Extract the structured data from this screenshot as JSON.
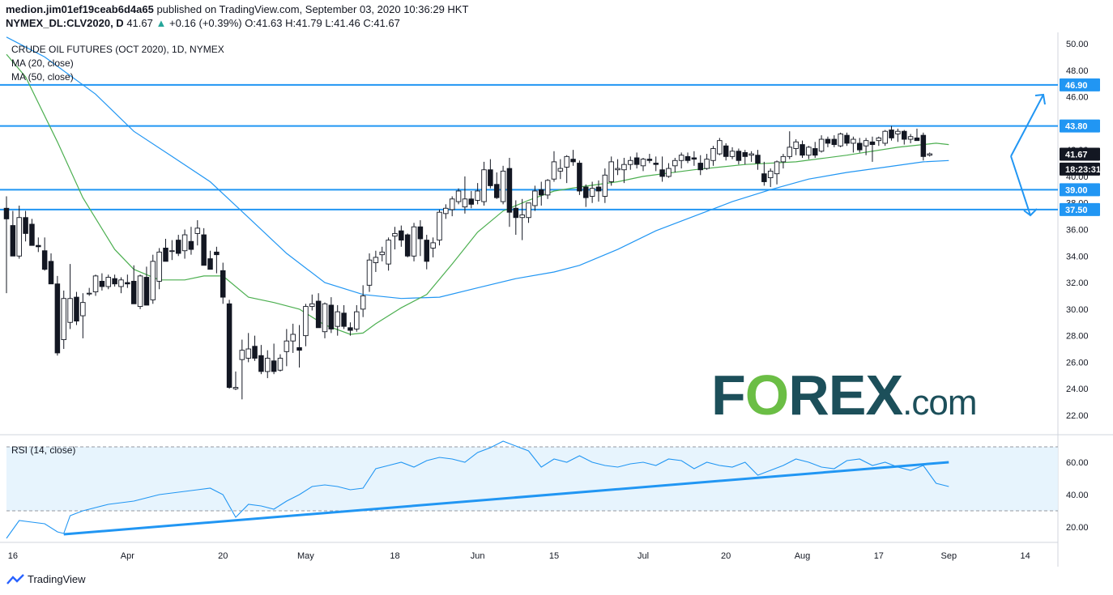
{
  "header": {
    "publisher": "medion.jim01ef19ceab6d4a65",
    "published_text": "published on TradingView.com, September 03, 2020 10:36:29 HKT",
    "symbol": "NYMEX_DL:CLV2020, D",
    "last": "41.67",
    "arrow": "▲",
    "change": "+0.16 (+0.39%)",
    "ohlc": {
      "o": "41.63",
      "h": "41.79",
      "l": "41.46",
      "c": "41.67"
    }
  },
  "legend": {
    "title": "CRUDE OIL FUTURES (OCT 2020), 1D, NYMEX",
    "ma20": "MA (20, close)",
    "ma50": "MA (50, close)"
  },
  "rsi_label": "RSI (14, close)",
  "logo_text": "FOREX.com",
  "footer_brand": "TradingView",
  "colors": {
    "up_text": "#26a69a",
    "candle": "#131722",
    "ma20": "#4caf50",
    "ma50": "#2196f3",
    "level": "#2196f3",
    "rsi_line": "#2196f3",
    "rsi_band": "#e3f2fd",
    "logo": "#1c4f5a",
    "logo_accent": "#6bbe45"
  },
  "chart_data": {
    "type": "candlestick",
    "title": "CRUDE OIL FUTURES (OCT 2020), 1D, NYMEX",
    "x_tick_labels": [
      "16",
      "Apr",
      "20",
      "May",
      "18",
      "Jun",
      "15",
      "Jul",
      "20",
      "Aug",
      "17",
      "Sep",
      "14"
    ],
    "y_tick_labels": [
      "22.00",
      "24.00",
      "26.00",
      "28.00",
      "30.00",
      "32.00",
      "34.00",
      "36.00",
      "38.00",
      "40.00",
      "42.00",
      "44.00",
      "46.00",
      "48.00",
      "50.00"
    ],
    "ylim": [
      21,
      50.5
    ],
    "levels": [
      46.9,
      43.8,
      39.0,
      37.5
    ],
    "price_labels": [
      {
        "text": "46.90",
        "value": 46.9,
        "kind": "level"
      },
      {
        "text": "43.80",
        "value": 43.8,
        "kind": "level"
      },
      {
        "text": "41.67",
        "value": 41.67,
        "kind": "last"
      },
      {
        "text": "18:23:31",
        "value": 40.55,
        "kind": "timer"
      },
      {
        "text": "39.00",
        "value": 39.0,
        "kind": "level"
      },
      {
        "text": "37.50",
        "value": 37.5,
        "kind": "level"
      }
    ],
    "rsi_tick_labels": [
      "20.00",
      "40.00",
      "60.00"
    ],
    "rsi_band": [
      30,
      70
    ],
    "rsi_ylim": [
      8,
      76
    ],
    "candles": [
      [
        37.6,
        38.5,
        31.2,
        36.8
      ],
      [
        36.3,
        37.4,
        34.0,
        34.0
      ],
      [
        34.0,
        37.8,
        33.8,
        36.9
      ],
      [
        36.9,
        37.4,
        35.1,
        35.7
      ],
      [
        36.4,
        36.8,
        34.8,
        34.8
      ],
      [
        34.8,
        35.4,
        34.3,
        34.7
      ],
      [
        34.4,
        35.4,
        32.9,
        33.0
      ],
      [
        33.6,
        34.2,
        31.9,
        31.9
      ],
      [
        31.9,
        32.5,
        26.5,
        26.7
      ],
      [
        27.7,
        31.4,
        27.0,
        30.8
      ],
      [
        29.0,
        33.4,
        28.5,
        30.8
      ],
      [
        30.9,
        31.3,
        28.8,
        29.1
      ],
      [
        29.5,
        31.2,
        27.8,
        30.5
      ],
      [
        31.2,
        31.6,
        31.0,
        31.2
      ],
      [
        31.3,
        32.6,
        31.0,
        32.5
      ],
      [
        32.1,
        32.7,
        31.4,
        31.7
      ],
      [
        31.7,
        32.6,
        31.5,
        32.4
      ],
      [
        32.3,
        32.6,
        31.7,
        31.9
      ],
      [
        31.7,
        32.4,
        31.2,
        32.2
      ],
      [
        32.0,
        32.6,
        31.6,
        31.9
      ],
      [
        32.1,
        33.3,
        30.4,
        30.4
      ],
      [
        30.2,
        32.6,
        30.0,
        32.5
      ],
      [
        32.4,
        33.2,
        30.3,
        30.3
      ],
      [
        30.7,
        34.1,
        30.4,
        33.6
      ],
      [
        32.1,
        34.6,
        31.5,
        34.3
      ],
      [
        34.6,
        35.3,
        33.8,
        33.6
      ],
      [
        34.4,
        35.2,
        33.7,
        34.4
      ],
      [
        35.2,
        35.6,
        34.0,
        34.2
      ],
      [
        34.4,
        36.0,
        33.8,
        35.6
      ],
      [
        35.1,
        36.2,
        34.1,
        34.5
      ],
      [
        35.7,
        36.7,
        34.8,
        36.1
      ],
      [
        35.6,
        36.1,
        33.3,
        33.3
      ],
      [
        33.8,
        34.4,
        33.0,
        33.0
      ],
      [
        34.3,
        34.7,
        32.7,
        34.1
      ],
      [
        32.9,
        33.5,
        30.4,
        30.9
      ],
      [
        30.4,
        30.7,
        24.0,
        24.1
      ],
      [
        24.0,
        25.3,
        23.9,
        24.1
      ],
      [
        26.2,
        27.7,
        23.2,
        26.9
      ],
      [
        26.3,
        28.2,
        26.0,
        27.0
      ],
      [
        27.2,
        28.0,
        26.1,
        26.3
      ],
      [
        26.5,
        27.3,
        25.1,
        25.3
      ],
      [
        25.3,
        26.9,
        24.8,
        26.3
      ],
      [
        26.1,
        27.4,
        25.1,
        25.3
      ],
      [
        25.4,
        26.6,
        25.3,
        26.3
      ],
      [
        26.8,
        28.5,
        25.7,
        27.6
      ],
      [
        27.6,
        28.9,
        26.7,
        28.1
      ],
      [
        27.1,
        28.8,
        25.6,
        26.9
      ],
      [
        28.0,
        30.4,
        27.2,
        30.2
      ],
      [
        30.2,
        31.1,
        29.9,
        30.4
      ],
      [
        30.6,
        31.2,
        28.6,
        28.6
      ],
      [
        28.3,
        30.5,
        27.8,
        30.4
      ],
      [
        30.3,
        30.9,
        28.2,
        28.5
      ],
      [
        28.7,
        30.3,
        28.0,
        29.8
      ],
      [
        29.7,
        30.3,
        28.5,
        28.7
      ],
      [
        28.6,
        29.0,
        28.0,
        28.4
      ],
      [
        28.5,
        30.3,
        28.3,
        29.8
      ],
      [
        30.0,
        31.8,
        29.4,
        31.0
      ],
      [
        31.8,
        34.2,
        31.3,
        33.7
      ],
      [
        33.5,
        34.4,
        32.8,
        33.9
      ],
      [
        34.1,
        34.7,
        33.6,
        34.3
      ],
      [
        33.4,
        35.4,
        32.9,
        35.2
      ],
      [
        35.5,
        36.2,
        34.5,
        35.7
      ],
      [
        35.9,
        36.3,
        34.7,
        35.2
      ],
      [
        35.6,
        35.7,
        33.9,
        34.0
      ],
      [
        34.0,
        36.5,
        33.6,
        36.2
      ],
      [
        36.2,
        36.7,
        34.0,
        35.3
      ],
      [
        35.2,
        35.6,
        33.0,
        33.6
      ],
      [
        34.6,
        35.4,
        33.9,
        35.0
      ],
      [
        35.2,
        37.5,
        34.8,
        37.3
      ],
      [
        37.2,
        37.9,
        36.8,
        37.6
      ],
      [
        37.5,
        38.5,
        37.0,
        38.3
      ],
      [
        38.1,
        39.1,
        37.9,
        38.9
      ],
      [
        37.7,
        40.0,
        37.2,
        38.3
      ],
      [
        38.3,
        38.9,
        37.6,
        37.9
      ],
      [
        38.2,
        39.5,
        37.9,
        38.9
      ],
      [
        38.1,
        41.1,
        37.8,
        40.5
      ],
      [
        40.5,
        41.3,
        39.1,
        39.3
      ],
      [
        39.4,
        40.3,
        38.3,
        38.4
      ],
      [
        38.1,
        40.8,
        37.9,
        40.4
      ],
      [
        40.6,
        41.4,
        36.2,
        37.3
      ],
      [
        37.6,
        38.2,
        35.6,
        36.9
      ],
      [
        36.9,
        38.3,
        35.2,
        37.1
      ],
      [
        36.9,
        38.0,
        36.5,
        38.0
      ],
      [
        37.8,
        39.3,
        37.4,
        38.9
      ],
      [
        39.0,
        39.6,
        37.8,
        38.6
      ],
      [
        38.6,
        39.8,
        38.3,
        39.7
      ],
      [
        39.8,
        41.9,
        39.6,
        41.1
      ],
      [
        40.4,
        41.3,
        39.8,
        40.6
      ],
      [
        40.7,
        41.6,
        39.5,
        41.5
      ],
      [
        41.3,
        42.0,
        40.8,
        41.1
      ],
      [
        41.0,
        41.2,
        38.6,
        38.9
      ],
      [
        39.2,
        39.4,
        37.7,
        38.4
      ],
      [
        38.5,
        39.6,
        38.0,
        39.1
      ],
      [
        39.2,
        39.7,
        38.1,
        38.9
      ],
      [
        38.5,
        40.6,
        38.0,
        40.1
      ],
      [
        39.6,
        41.5,
        39.3,
        41.1
      ],
      [
        40.5,
        41.3,
        40.1,
        40.6
      ],
      [
        40.5,
        41.4,
        39.5,
        40.9
      ],
      [
        40.9,
        41.5,
        40.5,
        41.2
      ],
      [
        41.4,
        41.8,
        40.6,
        40.9
      ],
      [
        40.8,
        41.4,
        40.4,
        41.3
      ],
      [
        41.3,
        41.7,
        41.0,
        41.2
      ],
      [
        41.0,
        41.5,
        40.4,
        40.9
      ],
      [
        40.5,
        41.5,
        39.6,
        40.0
      ],
      [
        40.0,
        41.0,
        39.9,
        40.6
      ],
      [
        40.8,
        41.4,
        40.3,
        41.2
      ],
      [
        41.2,
        41.8,
        40.6,
        41.6
      ],
      [
        41.5,
        41.8,
        41.0,
        41.2
      ],
      [
        41.4,
        41.9,
        40.8,
        41.3
      ],
      [
        41.0,
        41.6,
        40.1,
        40.5
      ],
      [
        40.6,
        41.7,
        40.5,
        41.3
      ],
      [
        41.2,
        42.3,
        40.8,
        42.1
      ],
      [
        41.7,
        42.9,
        41.6,
        42.7
      ],
      [
        42.3,
        42.5,
        41.2,
        41.5
      ],
      [
        41.5,
        42.2,
        41.3,
        41.9
      ],
      [
        41.9,
        42.1,
        40.9,
        41.2
      ],
      [
        41.8,
        42.0,
        40.9,
        41.5
      ],
      [
        41.6,
        41.9,
        41.1,
        41.7
      ],
      [
        41.6,
        42.0,
        40.5,
        41.0
      ],
      [
        40.2,
        41.1,
        39.3,
        39.6
      ],
      [
        39.9,
        40.6,
        39.2,
        40.4
      ],
      [
        40.2,
        41.2,
        39.4,
        41.1
      ],
      [
        41.1,
        41.7,
        40.6,
        41.5
      ],
      [
        41.5,
        43.4,
        41.3,
        42.2
      ],
      [
        42.1,
        42.8,
        41.6,
        42.6
      ],
      [
        42.4,
        42.7,
        41.4,
        41.6
      ],
      [
        41.6,
        42.3,
        41.3,
        42.2
      ],
      [
        42.1,
        42.6,
        41.4,
        41.6
      ],
      [
        41.9,
        43.1,
        41.8,
        42.8
      ],
      [
        42.8,
        43.0,
        42.2,
        42.5
      ],
      [
        42.8,
        43.1,
        42.2,
        42.4
      ],
      [
        42.3,
        43.3,
        42.2,
        43.2
      ],
      [
        43.1,
        43.3,
        42.3,
        42.5
      ],
      [
        42.5,
        43.0,
        41.8,
        42.8
      ],
      [
        42.5,
        42.9,
        41.8,
        42.0
      ],
      [
        42.3,
        42.9,
        41.6,
        42.7
      ],
      [
        42.6,
        43.0,
        41.1,
        42.4
      ],
      [
        42.7,
        43.0,
        42.3,
        42.9
      ],
      [
        42.5,
        43.5,
        42.3,
        43.4
      ],
      [
        43.5,
        43.8,
        42.7,
        42.9
      ],
      [
        43.2,
        43.6,
        42.6,
        43.4
      ],
      [
        43.4,
        43.5,
        42.4,
        42.8
      ],
      [
        42.8,
        43.2,
        42.5,
        43.0
      ],
      [
        42.9,
        43.6,
        42.7,
        42.7
      ],
      [
        43.1,
        43.3,
        41.2,
        41.5
      ],
      [
        41.6,
        41.8,
        41.5,
        41.7
      ]
    ],
    "ma20": [
      [
        0,
        49.2
      ],
      [
        3,
        47.5
      ],
      [
        8,
        42.6
      ],
      [
        12,
        38.4
      ],
      [
        17,
        34.5
      ],
      [
        20,
        33.0
      ],
      [
        24,
        32.2
      ],
      [
        28,
        32.2
      ],
      [
        31,
        32.5
      ],
      [
        34,
        32.5
      ],
      [
        38,
        30.9
      ],
      [
        42,
        30.5
      ],
      [
        46,
        30.0
      ],
      [
        50,
        28.8
      ],
      [
        54,
        28.1
      ],
      [
        56,
        28.2
      ],
      [
        58,
        28.9
      ],
      [
        62,
        30.1
      ],
      [
        66,
        31.1
      ],
      [
        70,
        33.4
      ],
      [
        74,
        35.8
      ],
      [
        78,
        37.4
      ],
      [
        82,
        38.2
      ],
      [
        86,
        38.9
      ],
      [
        90,
        39.2
      ],
      [
        96,
        39.6
      ],
      [
        100,
        40.0
      ],
      [
        108,
        40.5
      ],
      [
        116,
        40.9
      ],
      [
        124,
        41.1
      ],
      [
        132,
        41.6
      ],
      [
        140,
        42.2
      ],
      [
        146,
        42.5
      ],
      [
        148,
        42.4
      ]
    ],
    "ma50": [
      [
        0,
        50.5
      ],
      [
        6,
        49.0
      ],
      [
        14,
        46.2
      ],
      [
        20,
        43.4
      ],
      [
        26,
        41.5
      ],
      [
        32,
        39.6
      ],
      [
        38,
        36.9
      ],
      [
        44,
        34.2
      ],
      [
        50,
        32.0
      ],
      [
        56,
        31.1
      ],
      [
        62,
        30.8
      ],
      [
        68,
        30.9
      ],
      [
        74,
        31.6
      ],
      [
        80,
        32.3
      ],
      [
        86,
        32.8
      ],
      [
        90,
        33.3
      ],
      [
        96,
        34.5
      ],
      [
        102,
        35.9
      ],
      [
        108,
        37.0
      ],
      [
        114,
        38.1
      ],
      [
        120,
        39.0
      ],
      [
        126,
        39.8
      ],
      [
        132,
        40.3
      ],
      [
        138,
        40.7
      ],
      [
        144,
        41.1
      ],
      [
        148,
        41.2
      ]
    ],
    "rsi": [
      [
        0,
        13
      ],
      [
        2,
        24
      ],
      [
        4,
        23
      ],
      [
        6,
        22
      ],
      [
        8,
        17
      ],
      [
        9,
        16
      ],
      [
        10,
        27
      ],
      [
        12,
        30
      ],
      [
        14,
        32
      ],
      [
        16,
        34
      ],
      [
        18,
        35
      ],
      [
        20,
        36
      ],
      [
        22,
        38
      ],
      [
        24,
        40
      ],
      [
        26,
        41
      ],
      [
        28,
        42
      ],
      [
        30,
        43
      ],
      [
        32,
        44
      ],
      [
        34,
        40
      ],
      [
        36,
        26
      ],
      [
        38,
        34
      ],
      [
        40,
        33
      ],
      [
        42,
        31
      ],
      [
        44,
        36
      ],
      [
        46,
        40
      ],
      [
        48,
        45
      ],
      [
        50,
        46
      ],
      [
        52,
        45
      ],
      [
        54,
        43
      ],
      [
        56,
        44
      ],
      [
        58,
        56
      ],
      [
        60,
        58
      ],
      [
        62,
        60
      ],
      [
        64,
        57
      ],
      [
        66,
        61
      ],
      [
        68,
        63
      ],
      [
        70,
        62
      ],
      [
        72,
        60
      ],
      [
        74,
        66
      ],
      [
        76,
        69
      ],
      [
        78,
        73
      ],
      [
        80,
        70
      ],
      [
        82,
        67
      ],
      [
        84,
        57
      ],
      [
        86,
        62
      ],
      [
        88,
        60
      ],
      [
        90,
        64
      ],
      [
        92,
        60
      ],
      [
        94,
        58
      ],
      [
        96,
        57
      ],
      [
        98,
        59
      ],
      [
        100,
        60
      ],
      [
        102,
        58
      ],
      [
        104,
        62
      ],
      [
        106,
        61
      ],
      [
        108,
        56
      ],
      [
        110,
        60
      ],
      [
        112,
        58
      ],
      [
        114,
        57
      ],
      [
        116,
        60
      ],
      [
        118,
        52
      ],
      [
        120,
        55
      ],
      [
        122,
        58
      ],
      [
        124,
        62
      ],
      [
        126,
        60
      ],
      [
        128,
        57
      ],
      [
        130,
        56
      ],
      [
        132,
        61
      ],
      [
        134,
        62
      ],
      [
        136,
        58
      ],
      [
        138,
        60
      ],
      [
        140,
        57
      ],
      [
        142,
        55
      ],
      [
        144,
        58
      ],
      [
        146,
        47
      ],
      [
        148,
        45
      ]
    ],
    "rsi_trendline": [
      [
        9,
        15.5
      ],
      [
        148,
        60
      ]
    ],
    "x_ticks_index": [
      3,
      21,
      36,
      49,
      63,
      76,
      88,
      102,
      115,
      127,
      139,
      150,
      162
    ],
    "bars_total": 163
  }
}
